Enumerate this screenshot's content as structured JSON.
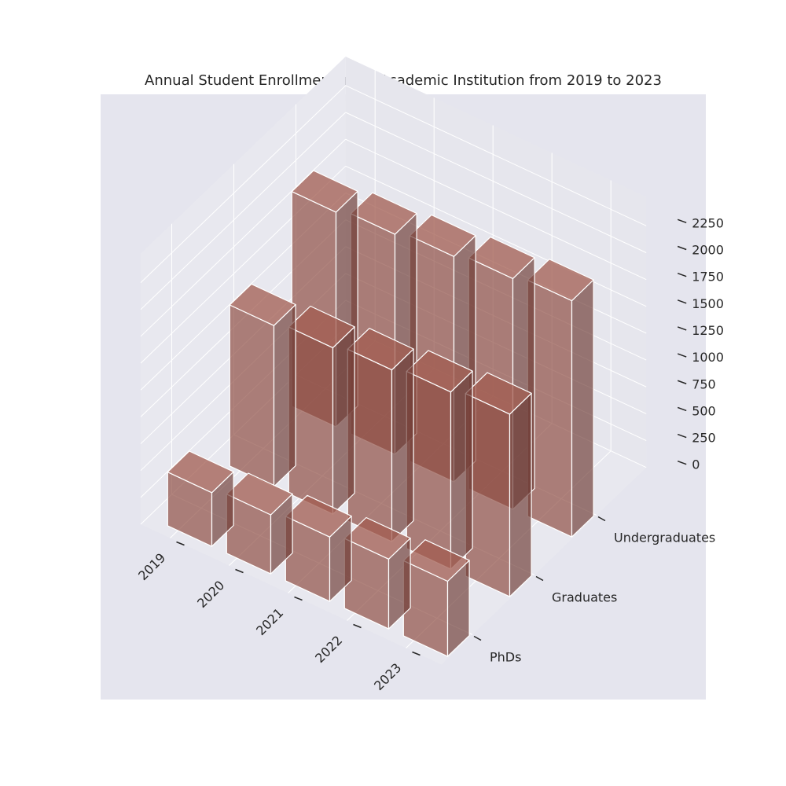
{
  "chart_data": {
    "type": "bar3d",
    "title": "Annual Student Enrollment in an Academic Institution from 2019 to 2023",
    "x_categories": [
      "2019",
      "2020",
      "2021",
      "2022",
      "2023"
    ],
    "y_categories": [
      "PhDs",
      "Graduates",
      "Undergraduates"
    ],
    "series": [
      {
        "name": "PhDs",
        "values": [
          500,
          550,
          600,
          650,
          700
        ]
      },
      {
        "name": "Graduates",
        "values": [
          1500,
          1550,
          1600,
          1650,
          1700
        ]
      },
      {
        "name": "Undergraduates",
        "values": [
          2000,
          2050,
          2100,
          2150,
          2200
        ]
      }
    ],
    "zlim": [
      0,
      2250
    ],
    "z_ticks": [
      "0",
      "250",
      "500",
      "750",
      "1000",
      "1250",
      "1500",
      "1750",
      "2000",
      "2250"
    ],
    "bar_color": "#8c4a40",
    "edge_color": "#ffffff",
    "pane_color": "#eaeaf2",
    "background_color": "#e5e5ee"
  }
}
